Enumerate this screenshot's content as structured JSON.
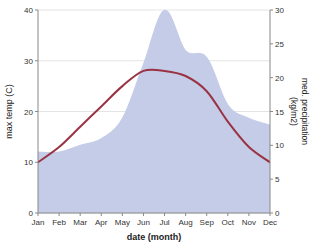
{
  "chart_data": {
    "type": "line",
    "categories": [
      "Jan",
      "Feb",
      "Mar",
      "Apr",
      "May",
      "Jun",
      "Jul",
      "Aug",
      "Sep",
      "Oct",
      "Nov",
      "Dec"
    ],
    "series": [
      {
        "type": "area",
        "axis": "y2",
        "color": "#c5cce8",
        "values": [
          9,
          9,
          10,
          11,
          14,
          22,
          30,
          24,
          23,
          16,
          14,
          13
        ]
      },
      {
        "type": "line",
        "color": "#993344",
        "values": [
          10,
          13,
          17,
          21,
          25,
          28,
          28,
          27,
          24,
          18,
          13,
          10
        ]
      }
    ],
    "xlabel": "date (month)",
    "ylabel": "max temp (C)",
    "y2label": "med. precipitation\n(kg/m2)",
    "ylim": [
      0,
      40
    ],
    "yticks": [
      0,
      10,
      20,
      30,
      40
    ],
    "y2lim": [
      0,
      30
    ],
    "y2ticks": [
      0,
      5,
      10,
      15,
      20,
      25,
      30
    ],
    "grid": true
  }
}
